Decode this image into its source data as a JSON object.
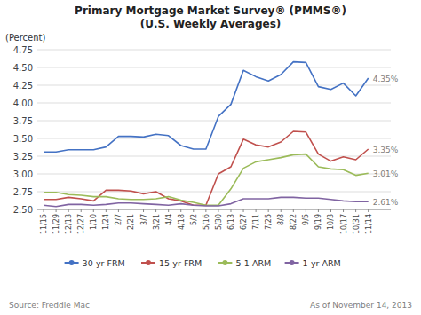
{
  "chart_data": {
    "type": "line",
    "title": "Primary Mortgage Market Survey® (PMMS®)",
    "subtitle": "(U.S. Weekly Averages)",
    "y_label": "(Percent)",
    "annotations": [
      "Source: Freddie Mac",
      "As of November 14, 2013"
    ],
    "categories": [
      "11/15",
      "11/29",
      "12/13",
      "12/27",
      "1/10",
      "1/24",
      "2/7",
      "2/21",
      "3/7",
      "3/21",
      "4/4",
      "4/18",
      "5/2",
      "5/16",
      "5/30",
      "6/13",
      "6/27",
      "7/11",
      "7/25",
      "8/8",
      "8/22",
      "9/5",
      "9/19",
      "10/3",
      "10/17",
      "10/31",
      "11/14"
    ],
    "series": [
      {
        "name": "30-yr FRM",
        "color": "#4472C4",
        "values": [
          3.31,
          3.31,
          3.34,
          3.34,
          3.34,
          3.38,
          3.53,
          3.53,
          3.52,
          3.56,
          3.54,
          3.4,
          3.35,
          3.35,
          3.81,
          3.98,
          4.46,
          4.37,
          4.31,
          4.4,
          4.58,
          4.57,
          4.23,
          4.19,
          4.28,
          4.1,
          4.35
        ],
        "value_labels": [
          null,
          null,
          null,
          null,
          null,
          null,
          null,
          null,
          null,
          null,
          null,
          null,
          null,
          null,
          null,
          null,
          null,
          null,
          null,
          null,
          null,
          null,
          null,
          null,
          null,
          null,
          "4.35%"
        ]
      },
      {
        "name": "15-yr FRM",
        "color": "#C0504D",
        "values": [
          2.64,
          2.64,
          2.67,
          2.65,
          2.62,
          2.77,
          2.77,
          2.76,
          2.72,
          2.75,
          2.65,
          2.62,
          2.56,
          2.56,
          3.0,
          3.1,
          3.49,
          3.41,
          3.38,
          3.45,
          3.6,
          3.59,
          3.28,
          3.18,
          3.24,
          3.2,
          3.35
        ],
        "value_labels": [
          null,
          null,
          null,
          null,
          null,
          null,
          null,
          null,
          null,
          null,
          null,
          null,
          null,
          null,
          null,
          null,
          null,
          null,
          null,
          null,
          null,
          null,
          null,
          null,
          null,
          null,
          "3.35%"
        ]
      },
      {
        "name": "5-1 ARM",
        "color": "#9BBB59",
        "values": [
          2.74,
          2.74,
          2.71,
          2.7,
          2.68,
          2.68,
          2.65,
          2.64,
          2.64,
          2.65,
          2.68,
          2.63,
          2.6,
          2.56,
          2.56,
          2.79,
          3.08,
          3.17,
          3.2,
          3.23,
          3.27,
          3.28,
          3.1,
          3.07,
          3.06,
          2.98,
          3.01
        ],
        "value_labels": [
          null,
          null,
          null,
          null,
          null,
          null,
          null,
          null,
          null,
          null,
          null,
          null,
          null,
          null,
          null,
          null,
          null,
          null,
          null,
          null,
          null,
          null,
          null,
          null,
          null,
          null,
          "3.01%"
        ]
      },
      {
        "name": "1-yr ARM",
        "color": "#8064A2",
        "values": [
          2.56,
          2.54,
          2.57,
          2.57,
          2.56,
          2.57,
          2.59,
          2.59,
          2.58,
          2.57,
          2.56,
          2.58,
          2.56,
          2.55,
          2.55,
          2.58,
          2.65,
          2.65,
          2.65,
          2.67,
          2.67,
          2.66,
          2.66,
          2.64,
          2.62,
          2.61,
          2.61
        ],
        "value_labels": [
          null,
          null,
          null,
          null,
          null,
          null,
          null,
          null,
          null,
          null,
          null,
          null,
          null,
          null,
          null,
          null,
          null,
          null,
          null,
          null,
          null,
          null,
          null,
          null,
          null,
          null,
          "2.61%"
        ]
      }
    ],
    "ylim": [
      2.5,
      4.75
    ],
    "yticks": [
      {
        "value": 2.5,
        "label": "2.50"
      },
      {
        "value": 2.75,
        "label": "2.75"
      },
      {
        "value": 3.0,
        "label": "3.00"
      },
      {
        "value": 3.25,
        "label": "3.25"
      },
      {
        "value": 3.5,
        "label": "3.50"
      },
      {
        "value": 3.75,
        "label": "3.75"
      },
      {
        "value": 4.0,
        "label": "4.00"
      },
      {
        "value": 4.25,
        "label": "4.25"
      },
      {
        "value": 4.5,
        "label": "4.50"
      },
      {
        "value": 4.75,
        "label": "4.75"
      }
    ],
    "grid": true,
    "legend": "bottom"
  }
}
